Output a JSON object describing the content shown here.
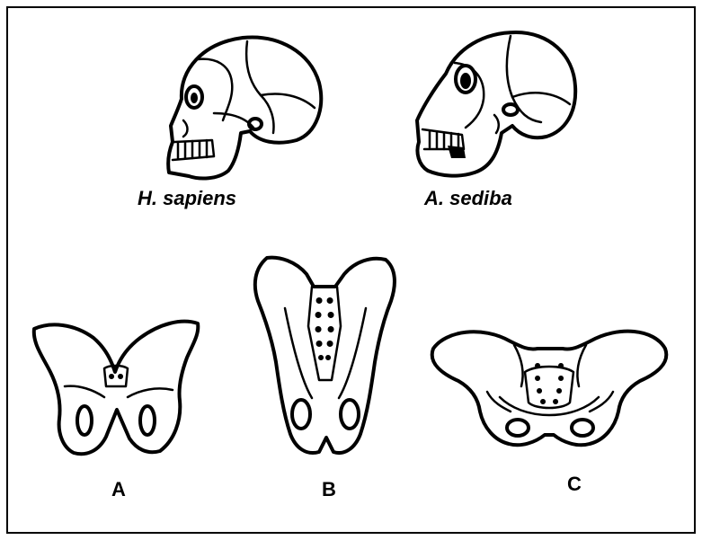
{
  "skulls": [
    {
      "id": "sapiens",
      "label": "H. sapiens"
    },
    {
      "id": "sediba",
      "label": "A. sediba"
    }
  ],
  "pelves": [
    {
      "id": "A",
      "label": "A"
    },
    {
      "id": "B",
      "label": "B"
    },
    {
      "id": "C",
      "label": "C"
    }
  ],
  "colors": {
    "ink": "#000000",
    "background": "#ffffff"
  }
}
